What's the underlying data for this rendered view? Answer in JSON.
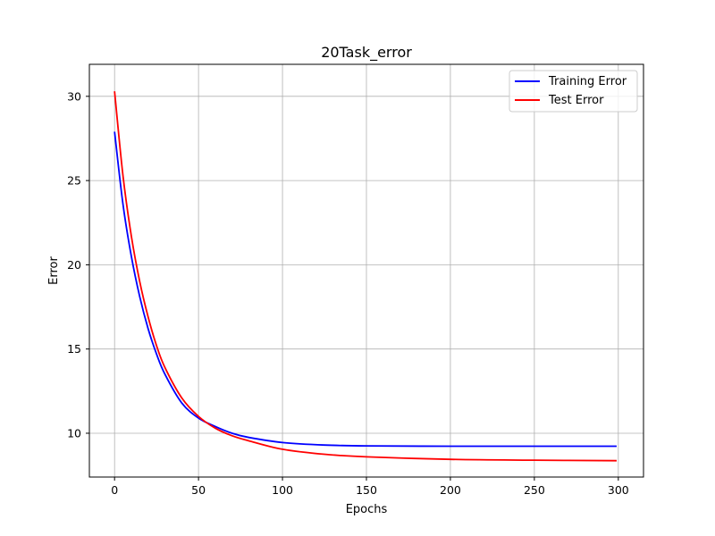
{
  "chart_data": {
    "type": "line",
    "title": "20Task_error",
    "xlabel": "Epochs",
    "ylabel": "Error",
    "xlim": [
      -15,
      315
    ],
    "ylim": [
      7.4,
      31.9
    ],
    "xticks": [
      0,
      50,
      100,
      150,
      200,
      250,
      300
    ],
    "yticks": [
      10,
      15,
      20,
      25,
      30
    ],
    "grid": true,
    "legend_position": "top-right",
    "series": [
      {
        "name": "Training Error",
        "color": "#0000ff",
        "x": [
          0,
          5,
          10,
          15,
          20,
          25,
          30,
          40,
          50,
          60,
          70,
          80,
          100,
          125,
          150,
          200,
          250,
          299
        ],
        "y": [
          27.9,
          23.6,
          20.5,
          18.1,
          16.2,
          14.7,
          13.5,
          11.8,
          10.9,
          10.4,
          10.0,
          9.75,
          9.45,
          9.3,
          9.25,
          9.23,
          9.23,
          9.23
        ]
      },
      {
        "name": "Test Error",
        "color": "#ff0000",
        "x": [
          0,
          5,
          10,
          15,
          20,
          25,
          30,
          40,
          50,
          60,
          70,
          80,
          100,
          125,
          150,
          200,
          250,
          299
        ],
        "y": [
          30.3,
          25.3,
          21.7,
          19.0,
          16.9,
          15.2,
          13.9,
          12.1,
          11.0,
          10.3,
          9.85,
          9.55,
          9.05,
          8.75,
          8.6,
          8.45,
          8.4,
          8.37
        ]
      }
    ]
  }
}
